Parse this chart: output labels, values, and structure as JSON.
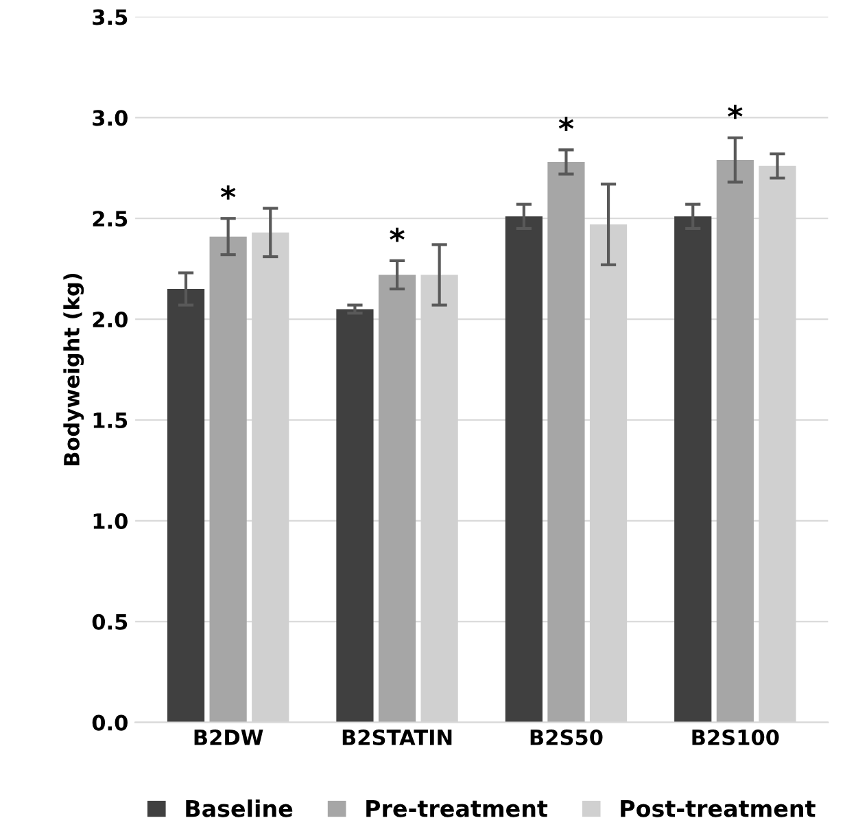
{
  "chart_data": {
    "type": "bar",
    "ylabel": "Bodyweight (kg)",
    "categories": [
      "B2DW",
      "B2STATIN",
      "B2S50",
      "B2S100"
    ],
    "series": [
      {
        "name": "Baseline",
        "color": "#404040",
        "values": [
          2.15,
          2.05,
          2.51,
          2.51
        ],
        "errors": [
          0.08,
          0.02,
          0.06,
          0.06
        ]
      },
      {
        "name": "Pre-treatment",
        "color": "#a6a6a6",
        "values": [
          2.41,
          2.22,
          2.78,
          2.79
        ],
        "errors": [
          0.09,
          0.07,
          0.06,
          0.11
        ]
      },
      {
        "name": "Post-treatment",
        "color": "#d0d0d0",
        "values": [
          2.43,
          2.22,
          2.47,
          2.76
        ],
        "errors": [
          0.12,
          0.15,
          0.2,
          0.06
        ]
      }
    ],
    "annotations": [
      {
        "text": "*",
        "x": "B2DW",
        "y": 2.5
      },
      {
        "text": "*",
        "x": "B2STATIN",
        "y": 2.29
      },
      {
        "text": "*",
        "x": "B2S50",
        "y": 2.84
      },
      {
        "text": "*",
        "x": "B2S100",
        "y": 2.9
      }
    ],
    "ylim": [
      0,
      3.5
    ],
    "yticks": [
      {
        "value": 0,
        "label": "0.0"
      },
      {
        "value": 0.5,
        "label": "0.5"
      },
      {
        "value": 1,
        "label": "1.0"
      },
      {
        "value": 1.5,
        "label": "1.5"
      },
      {
        "value": 2,
        "label": "2.0"
      },
      {
        "value": 2.5,
        "label": "2.5"
      },
      {
        "value": 3,
        "label": "3.0"
      },
      {
        "value": 3.5,
        "label": "3.5"
      }
    ],
    "grid": "y",
    "legend": "bottom"
  }
}
